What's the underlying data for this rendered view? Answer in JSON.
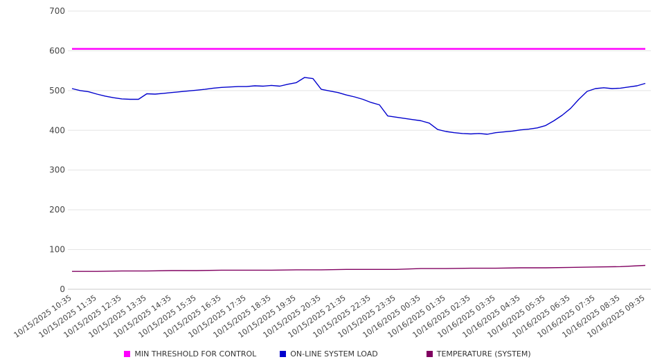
{
  "chart_data": {
    "type": "line",
    "title": "",
    "xlabel": "",
    "ylabel": "",
    "ylim": [
      0,
      700
    ],
    "y_ticks": [
      0,
      100,
      200,
      300,
      400,
      500,
      600,
      700
    ],
    "grid": true,
    "legend_position": "bottom",
    "x_tick_labels": [
      "10/15/2025 10:35",
      "10/15/2025 11:35",
      "10/15/2025 12:35",
      "10/15/2025 13:35",
      "10/15/2025 14:35",
      "10/15/2025 15:35",
      "10/15/2025 16:35",
      "10/15/2025 17:35",
      "10/15/2025 18:35",
      "10/15/2025 19:35",
      "10/15/2025 20:35",
      "10/15/2025 21:35",
      "10/15/2025 22:35",
      "10/15/2025 23:35",
      "10/16/2025 00:35",
      "10/16/2025 01:35",
      "10/16/2025 02:35",
      "10/16/2025 03:35",
      "10/16/2025 04:35",
      "10/16/2025 05:35",
      "10/16/2025 06:35",
      "10/16/2025 07:35",
      "10/16/2025 08:35",
      "10/16/2025 09:35"
    ],
    "series": [
      {
        "name": "MIN THRESHOLD FOR CONTROL",
        "color": "#ff00ff",
        "stroke_width": 2.5,
        "values": [
          605,
          605
        ]
      },
      {
        "name": "ON-LINE SYSTEM LOAD",
        "color": "#0000cd",
        "stroke_width": 1.4,
        "values": [
          505,
          500,
          497,
          491,
          486,
          482,
          479,
          478,
          478,
          492,
          491,
          493,
          495,
          497,
          499,
          501,
          503,
          506,
          508,
          509,
          510,
          510,
          512,
          511,
          513,
          511,
          516,
          520,
          533,
          530,
          503,
          499,
          495,
          489,
          484,
          478,
          470,
          464,
          436,
          433,
          430,
          427,
          424,
          418,
          402,
          397,
          394,
          392,
          391,
          392,
          390,
          394,
          396,
          398,
          401,
          403,
          406,
          412,
          424,
          438,
          455,
          478,
          498,
          505,
          507,
          505,
          506,
          509,
          512,
          518
        ]
      },
      {
        "name": "TEMPERATURE (SYSTEM)",
        "color": "#800060",
        "stroke_width": 1.4,
        "values": [
          45,
          45,
          46,
          46,
          47,
          47,
          48,
          48,
          48,
          49,
          49,
          50,
          50,
          50,
          52,
          52,
          53,
          53,
          54,
          54,
          55,
          56,
          57,
          60
        ]
      }
    ]
  }
}
